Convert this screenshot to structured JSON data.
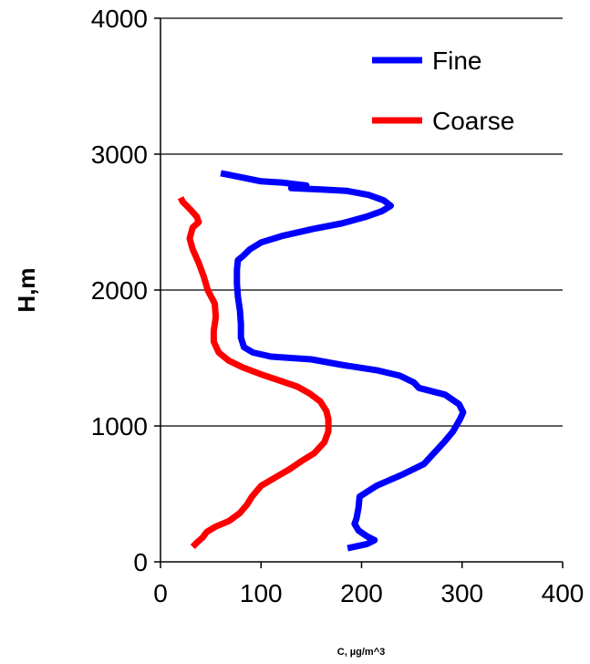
{
  "chart_data": {
    "type": "line",
    "title": "",
    "xlabel": "C, µg/m^3",
    "ylabel": "H,m",
    "xlim": [
      0,
      400
    ],
    "ylim": [
      0,
      4000
    ],
    "xticks": [
      0,
      100,
      200,
      300,
      400
    ],
    "yticks": [
      0,
      1000,
      2000,
      3000,
      4000
    ],
    "x_tick_labels": [
      "0",
      "100",
      "200",
      "300",
      "400"
    ],
    "y_tick_labels": [
      "0",
      "1000",
      "2000",
      "3000",
      "4000"
    ],
    "grid": "horizontal",
    "legend": "top-right",
    "series": [
      {
        "name": "Fine",
        "color": "#0000ff",
        "points": [
          [
            186,
            100
          ],
          [
            205,
            130
          ],
          [
            213,
            160
          ],
          [
            205,
            190
          ],
          [
            197,
            230
          ],
          [
            193,
            280
          ],
          [
            195,
            320
          ],
          [
            197,
            400
          ],
          [
            198,
            480
          ],
          [
            215,
            560
          ],
          [
            240,
            640
          ],
          [
            262,
            720
          ],
          [
            272,
            800
          ],
          [
            282,
            880
          ],
          [
            291,
            960
          ],
          [
            298,
            1050
          ],
          [
            301,
            1100
          ],
          [
            297,
            1160
          ],
          [
            283,
            1230
          ],
          [
            257,
            1280
          ],
          [
            252,
            1320
          ],
          [
            238,
            1370
          ],
          [
            215,
            1410
          ],
          [
            180,
            1450
          ],
          [
            150,
            1490
          ],
          [
            110,
            1510
          ],
          [
            92,
            1540
          ],
          [
            83,
            1580
          ],
          [
            80,
            1650
          ],
          [
            80,
            1750
          ],
          [
            79,
            1850
          ],
          [
            77,
            1950
          ],
          [
            76,
            2050
          ],
          [
            76,
            2150
          ],
          [
            77,
            2220
          ],
          [
            82,
            2250
          ],
          [
            89,
            2300
          ],
          [
            100,
            2350
          ],
          [
            122,
            2400
          ],
          [
            152,
            2450
          ],
          [
            180,
            2490
          ],
          [
            205,
            2540
          ],
          [
            220,
            2580
          ],
          [
            229,
            2620
          ],
          [
            222,
            2660
          ],
          [
            207,
            2700
          ],
          [
            185,
            2730
          ],
          [
            160,
            2740
          ],
          [
            130,
            2750
          ],
          [
            145,
            2770
          ],
          [
            122,
            2790
          ],
          [
            100,
            2800
          ],
          [
            80,
            2830
          ],
          [
            60,
            2860
          ]
        ]
      },
      {
        "name": "Coarse",
        "color": "#ff0000",
        "points": [
          [
            32,
            110
          ],
          [
            36,
            140
          ],
          [
            42,
            180
          ],
          [
            46,
            220
          ],
          [
            55,
            260
          ],
          [
            68,
            300
          ],
          [
            79,
            360
          ],
          [
            86,
            420
          ],
          [
            91,
            480
          ],
          [
            100,
            560
          ],
          [
            114,
            620
          ],
          [
            128,
            680
          ],
          [
            140,
            740
          ],
          [
            153,
            800
          ],
          [
            163,
            880
          ],
          [
            167,
            960
          ],
          [
            167,
            1050
          ],
          [
            165,
            1110
          ],
          [
            159,
            1180
          ],
          [
            148,
            1240
          ],
          [
            136,
            1290
          ],
          [
            120,
            1330
          ],
          [
            100,
            1380
          ],
          [
            82,
            1430
          ],
          [
            68,
            1480
          ],
          [
            58,
            1540
          ],
          [
            53,
            1620
          ],
          [
            53,
            1700
          ],
          [
            55,
            1800
          ],
          [
            54,
            1900
          ],
          [
            47,
            2000
          ],
          [
            43,
            2100
          ],
          [
            38,
            2200
          ],
          [
            32,
            2300
          ],
          [
            29,
            2380
          ],
          [
            32,
            2460
          ],
          [
            38,
            2500
          ],
          [
            36,
            2540
          ],
          [
            30,
            2590
          ],
          [
            22,
            2650
          ],
          [
            20,
            2680
          ]
        ]
      }
    ]
  }
}
